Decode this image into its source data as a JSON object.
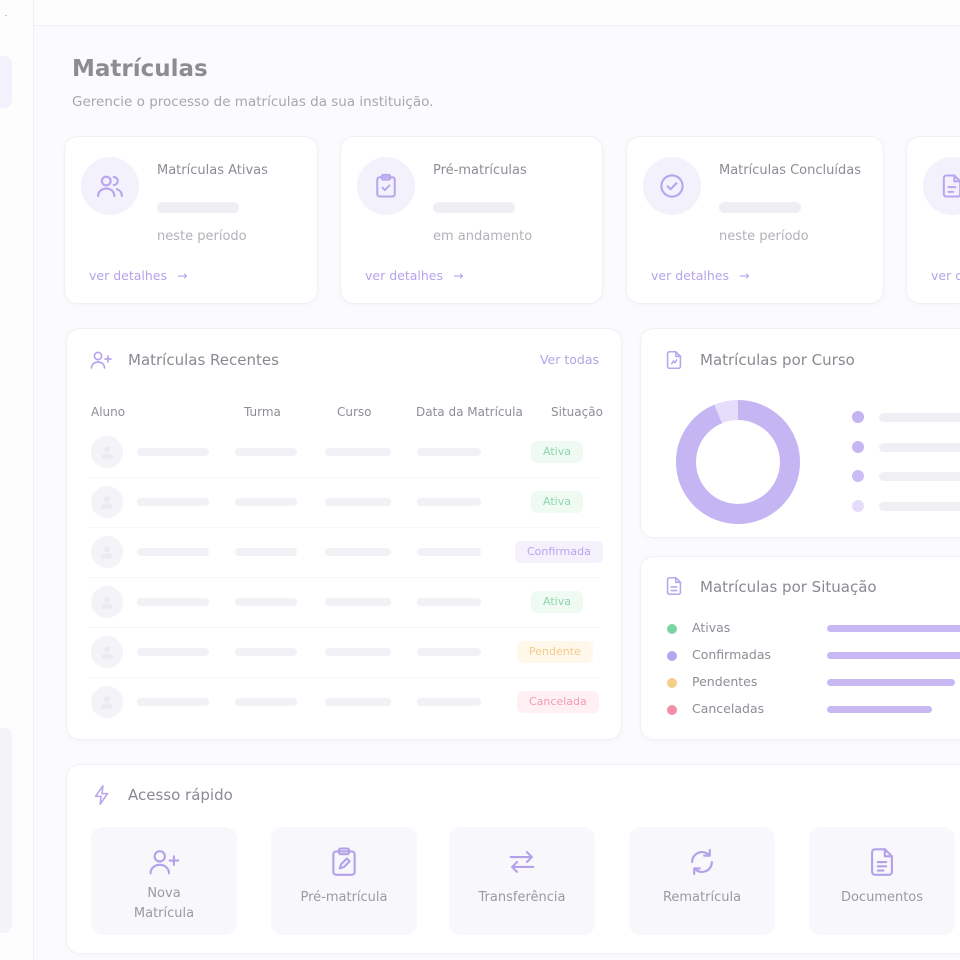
{
  "page": {
    "title": "Matrículas",
    "subtitle": "Gerencie o processo de matrículas da sua instituição."
  },
  "colors": {
    "accent": "#b7a6ee",
    "ativa": "#7fd4a6",
    "confirmada": "#b6a6ee",
    "pendente": "#f6cf87",
    "cancelada": "#f28fa5"
  },
  "stats": [
    {
      "title": "Matrículas Ativas",
      "subtitle": "neste período",
      "link": "ver detalhes",
      "icon": "users-icon"
    },
    {
      "title": "Pré-matrículas",
      "subtitle": "em andamento",
      "link": "ver detalhes",
      "icon": "clipboard-check-icon"
    },
    {
      "title": "Matrículas Concluídas",
      "subtitle": "neste período",
      "link": "ver detalhes",
      "icon": "check-circle-icon"
    },
    {
      "title": "",
      "subtitle": "",
      "link": "ver d",
      "icon": "document-edit-icon"
    }
  ],
  "recent": {
    "title": "Matrículas Recentes",
    "view_all": "Ver todas",
    "columns": [
      "Aluno",
      "Turma",
      "Curso",
      "Data da Matrícula",
      "Situação"
    ],
    "rows": [
      {
        "status": "Ativa"
      },
      {
        "status": "Ativa"
      },
      {
        "status": "Confirmada"
      },
      {
        "status": "Ativa"
      },
      {
        "status": "Pendente"
      },
      {
        "status": "Cancelada"
      }
    ]
  },
  "by_course": {
    "title": "Matrículas por Curso",
    "legend_dot_colors": [
      "#c3b3f3",
      "#c6b7f3",
      "#cbbdf4",
      "#e4dcfa"
    ]
  },
  "by_status": {
    "title": "Matrículas por Situação",
    "items": [
      {
        "label": "Ativas",
        "level": 1.0
      },
      {
        "label": "Confirmadas",
        "level": 1.0
      },
      {
        "label": "Pendentes",
        "level": 0.85
      },
      {
        "label": "Canceladas",
        "level": 0.7
      }
    ]
  },
  "quick": {
    "title": "Acesso rápido",
    "items": [
      {
        "label_line1": "Nova",
        "label_line2": "Matrícula",
        "icon": "user-plus-icon"
      },
      {
        "label_line1": "Pré-matrícula",
        "icon": "clipboard-edit-icon"
      },
      {
        "label_line1": "Transferência",
        "icon": "transfer-arrows-icon"
      },
      {
        "label_line1": "Rematrícula",
        "icon": "refresh-icon"
      },
      {
        "label_line1": "Documentos",
        "icon": "document-icon"
      }
    ]
  }
}
